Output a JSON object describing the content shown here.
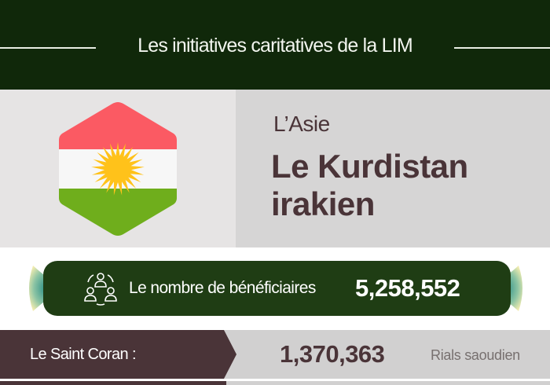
{
  "header": {
    "title": "Les initiatives caritatives de la LIM"
  },
  "country": {
    "region": "L’Asie",
    "name": "Le Kurdistan irakien",
    "flag_colors": {
      "red": "#fb5a63",
      "white": "#f7f7f7",
      "green": "#6fae1c",
      "sun": "#ffc21a"
    }
  },
  "beneficiaries": {
    "icon": "people-group-icon",
    "label": "Le nombre de bénéficiaires",
    "value": "5,258,552"
  },
  "rows": [
    {
      "label": "Le Saint Coran :",
      "value": "1,370,363",
      "unit": "Rials saoudien"
    }
  ],
  "colors": {
    "header_bg": "#10280a",
    "pill_bg": "#1f3d14",
    "accent": "#4a3438"
  }
}
